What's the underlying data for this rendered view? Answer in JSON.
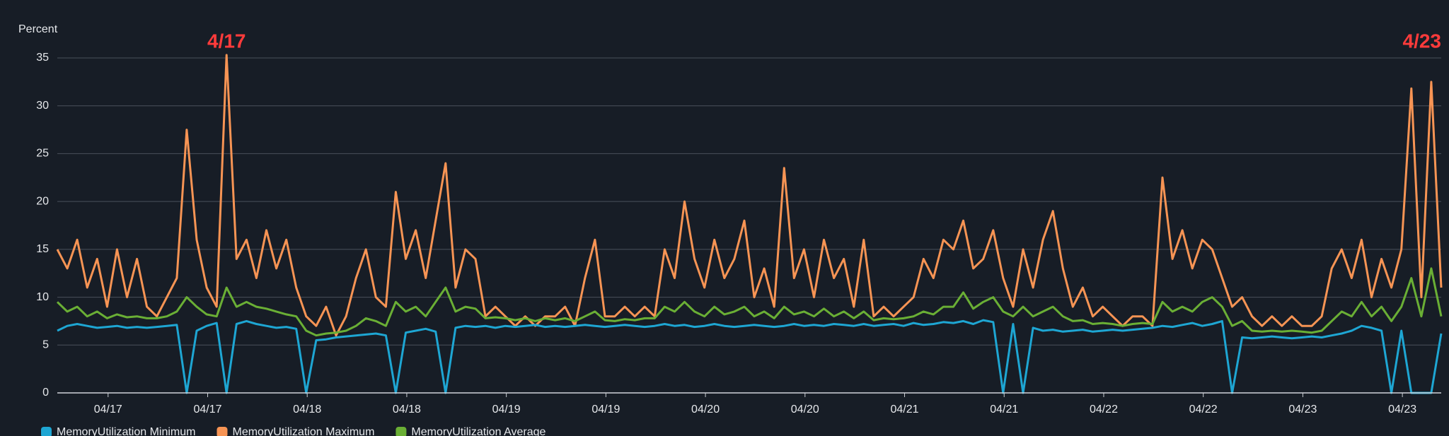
{
  "chart_data": {
    "type": "line",
    "y_label": "Percent",
    "annotations": [
      "4/17",
      "4/23"
    ],
    "ylim": [
      0,
      35
    ],
    "yticks": [
      0,
      5,
      10,
      15,
      20,
      25,
      30,
      35
    ],
    "grid": true,
    "xlim": [
      0,
      139
    ],
    "xticks": [
      {
        "value": 5.1,
        "label": "04/17"
      },
      {
        "value": 15.1,
        "label": "04/17"
      },
      {
        "value": 25.1,
        "label": "04/18"
      },
      {
        "value": 35.1,
        "label": "04/18"
      },
      {
        "value": 45.1,
        "label": "04/19"
      },
      {
        "value": 55.1,
        "label": "04/19"
      },
      {
        "value": 65.1,
        "label": "04/20"
      },
      {
        "value": 75.1,
        "label": "04/20"
      },
      {
        "value": 85.1,
        "label": "04/21"
      },
      {
        "value": 95.1,
        "label": "04/21"
      },
      {
        "value": 105.1,
        "label": "04/22"
      },
      {
        "value": 115.1,
        "label": "04/22"
      },
      {
        "value": 125.1,
        "label": "04/23"
      },
      {
        "value": 135.1,
        "label": "04/23"
      }
    ],
    "series": [
      {
        "name": "MemoryUtilization Maximum",
        "color": "#f79454",
        "values": [
          15,
          13,
          16,
          11,
          14,
          9,
          15,
          10,
          14,
          9,
          8,
          10,
          12,
          27.5,
          16,
          11,
          9,
          35.3,
          14,
          16,
          12,
          17,
          13,
          16,
          11,
          8,
          7,
          9,
          6,
          8,
          12,
          15,
          10,
          9,
          21,
          14,
          17,
          12,
          18,
          24,
          11,
          15,
          14,
          8,
          9,
          8,
          7,
          8,
          7,
          8,
          8,
          9,
          7,
          12,
          16,
          8,
          8,
          9,
          8,
          9,
          8,
          15,
          12,
          20,
          14,
          11,
          16,
          12,
          14,
          18,
          10,
          13,
          9,
          23.5,
          12,
          15,
          10,
          16,
          12,
          14,
          9,
          16,
          8,
          9,
          8,
          9,
          10,
          14,
          12,
          16,
          15,
          18,
          13,
          14,
          17,
          12,
          9,
          15,
          11,
          16,
          19,
          13,
          9,
          11,
          8,
          9,
          8,
          7,
          8,
          8,
          7,
          22.5,
          14,
          17,
          13,
          16,
          15,
          12,
          9,
          10,
          8,
          7,
          8,
          7,
          8,
          7,
          7,
          8,
          13,
          15,
          12,
          16,
          10,
          14,
          11,
          15,
          31.8,
          10,
          32.5,
          11
        ]
      },
      {
        "name": "MemoryUtilization Average",
        "color": "#6aaf35",
        "values": [
          9.5,
          8.5,
          9,
          8,
          8.5,
          7.8,
          8.2,
          7.9,
          8,
          7.8,
          7.8,
          8,
          8.5,
          10,
          9,
          8.2,
          8,
          11,
          9,
          9.5,
          9,
          8.8,
          8.5,
          8.2,
          8,
          6.5,
          6,
          6.2,
          6.3,
          6.5,
          7,
          7.8,
          7.5,
          7,
          9.5,
          8.5,
          9,
          8,
          9.5,
          11,
          8.5,
          9,
          8.8,
          7.8,
          7.9,
          7.8,
          7.6,
          7.8,
          7.5,
          7.8,
          7.6,
          7.8,
          7.5,
          8,
          8.5,
          7.6,
          7.5,
          7.7,
          7.6,
          7.8,
          7.8,
          9,
          8.5,
          9.5,
          8.5,
          8,
          9,
          8.2,
          8.5,
          9,
          8,
          8.5,
          7.8,
          9,
          8.2,
          8.5,
          8,
          8.8,
          8,
          8.5,
          7.8,
          8.5,
          7.6,
          7.8,
          7.7,
          7.8,
          8,
          8.5,
          8.2,
          9,
          9,
          10.5,
          8.8,
          9.5,
          10,
          8.5,
          8,
          9,
          8,
          8.5,
          9,
          8,
          7.5,
          7.6,
          7.2,
          7.3,
          7.2,
          7,
          7.2,
          7.3,
          7.2,
          9.5,
          8.5,
          9,
          8.5,
          9.5,
          10,
          9,
          7,
          7.5,
          6.5,
          6.4,
          6.5,
          6.4,
          6.5,
          6.4,
          6.3,
          6.5,
          7.5,
          8.5,
          8,
          9.5,
          8,
          9,
          7.5,
          9,
          12,
          8,
          13,
          8
        ]
      },
      {
        "name": "MemoryUtilization Minimum",
        "color": "#1ea6d3",
        "values": [
          6.5,
          7,
          7.2,
          7,
          6.8,
          6.9,
          7,
          6.8,
          6.9,
          6.8,
          6.9,
          7,
          7.1,
          0,
          6.5,
          7,
          7.3,
          0,
          7.2,
          7.5,
          7.2,
          7,
          6.8,
          6.9,
          6.7,
          0,
          5.5,
          5.6,
          5.8,
          5.9,
          6,
          6.1,
          6.2,
          6,
          0,
          6.3,
          6.5,
          6.7,
          6.4,
          0,
          6.8,
          7,
          6.9,
          7,
          6.8,
          7,
          6.9,
          7,
          7.1,
          6.9,
          7,
          6.9,
          7,
          7.1,
          7,
          6.9,
          7,
          7.1,
          7,
          6.9,
          7,
          7.2,
          7,
          7.1,
          6.9,
          7,
          7.2,
          7,
          6.9,
          7,
          7.1,
          7,
          6.9,
          7,
          7.2,
          7,
          7.1,
          7,
          7.2,
          7.1,
          7,
          7.2,
          7,
          7.1,
          7.2,
          7,
          7.3,
          7.1,
          7.2,
          7.4,
          7.3,
          7.5,
          7.2,
          7.6,
          7.4,
          0,
          7.2,
          0,
          6.8,
          6.5,
          6.6,
          6.4,
          6.5,
          6.6,
          6.4,
          6.5,
          6.6,
          6.5,
          6.6,
          6.7,
          6.8,
          7,
          6.9,
          7.1,
          7.3,
          7,
          7.2,
          7.5,
          0,
          5.8,
          5.7,
          5.8,
          5.9,
          5.8,
          5.7,
          5.8,
          5.9,
          5.8,
          6,
          6.2,
          6.5,
          7,
          6.8,
          6.5,
          0,
          6.5,
          0,
          0,
          0,
          6.2
        ]
      }
    ],
    "legend_order": [
      "MemoryUtilization Minimum",
      "MemoryUtilization Maximum",
      "MemoryUtilization Average"
    ]
  }
}
